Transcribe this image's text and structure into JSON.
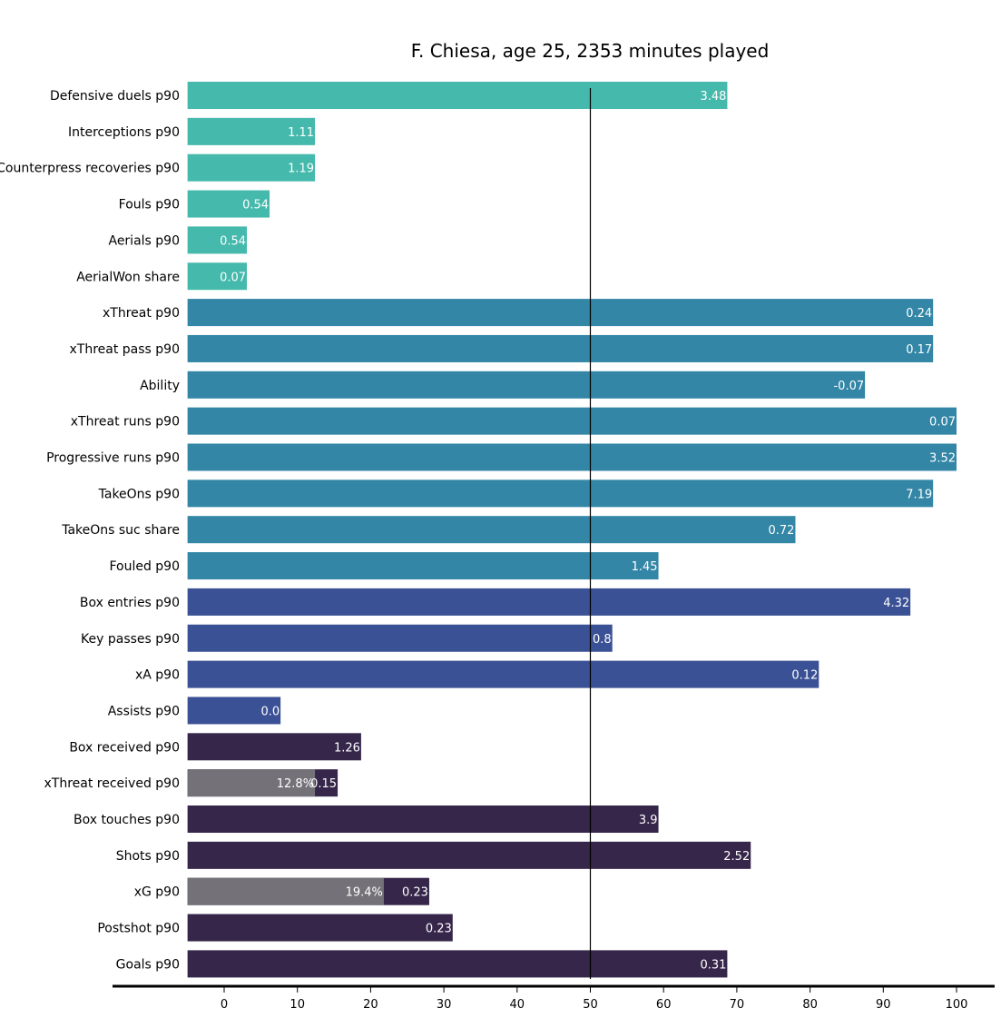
{
  "chart_data": {
    "type": "bar",
    "orientation": "horizontal",
    "title": "F. Chiesa, age 25, 2353 minutes played",
    "xlabel": "",
    "ylabel": "",
    "xlim": [
      -5,
      105
    ],
    "xticks": [
      0,
      10,
      20,
      30,
      40,
      50,
      60,
      70,
      80,
      90,
      100
    ],
    "reference_line": 50,
    "grid": false,
    "group_colors": {
      "defending": "#45b9ac",
      "possession": "#3386a6",
      "creation": "#3b5195",
      "finishing": "#35264a",
      "overlay": "#747278"
    },
    "categories": [
      {
        "label": "Defensive duels p90",
        "value": 68.7,
        "display": "3.48",
        "group": "defending"
      },
      {
        "label": "Interceptions p90",
        "value": 12.4,
        "display": "1.11",
        "group": "defending"
      },
      {
        "label": "Counterpress recoveries p90",
        "value": 12.4,
        "display": "1.19",
        "group": "defending"
      },
      {
        "label": "Fouls p90",
        "value": 6.2,
        "display": "0.54",
        "group": "defending"
      },
      {
        "label": "Aerials p90",
        "value": 3.1,
        "display": "0.54",
        "group": "defending"
      },
      {
        "label": "AerialWon share",
        "value": 3.1,
        "display": "0.07",
        "group": "defending"
      },
      {
        "label": "xThreat p90",
        "value": 96.8,
        "display": "0.24",
        "group": "possession"
      },
      {
        "label": "xThreat pass p90",
        "value": 96.8,
        "display": "0.17",
        "group": "possession"
      },
      {
        "label": "Ability",
        "value": 87.5,
        "display": "-0.07",
        "group": "possession"
      },
      {
        "label": "xThreat runs p90",
        "value": 100,
        "display": "0.07",
        "group": "possession"
      },
      {
        "label": "Progressive runs p90",
        "value": 100,
        "display": "3.52",
        "group": "possession"
      },
      {
        "label": "TakeOns p90",
        "value": 96.8,
        "display": "7.19",
        "group": "possession"
      },
      {
        "label": "TakeOns suc share",
        "value": 78.0,
        "display": "0.72",
        "group": "possession"
      },
      {
        "label": "Fouled p90",
        "value": 59.3,
        "display": "1.45",
        "group": "possession"
      },
      {
        "label": "Box entries p90",
        "value": 93.7,
        "display": "4.32",
        "group": "creation"
      },
      {
        "label": "Key passes p90",
        "value": 53.0,
        "display": "0.8",
        "group": "creation"
      },
      {
        "label": "xA p90",
        "value": 81.2,
        "display": "0.12",
        "group": "creation"
      },
      {
        "label": "Assists p90",
        "value": 7.7,
        "display": "0.0",
        "group": "creation"
      },
      {
        "label": "Box received p90",
        "value": 18.7,
        "display": "1.26",
        "group": "finishing"
      },
      {
        "label": "xThreat received p90",
        "value": 15.5,
        "display": "0.15",
        "group": "finishing",
        "overlay_value": 12.4,
        "overlay_display": "12.8%"
      },
      {
        "label": "Box touches p90",
        "value": 59.3,
        "display": "3.9",
        "group": "finishing"
      },
      {
        "label": "Shots p90",
        "value": 71.9,
        "display": "2.52",
        "group": "finishing"
      },
      {
        "label": "xG p90",
        "value": 28.0,
        "display": "0.23",
        "group": "finishing",
        "overlay_value": 21.8,
        "overlay_display": "19.4%"
      },
      {
        "label": "Postshot p90",
        "value": 31.2,
        "display": "0.23",
        "group": "finishing"
      },
      {
        "label": "Goals p90",
        "value": 68.7,
        "display": "0.31",
        "group": "finishing"
      }
    ]
  }
}
